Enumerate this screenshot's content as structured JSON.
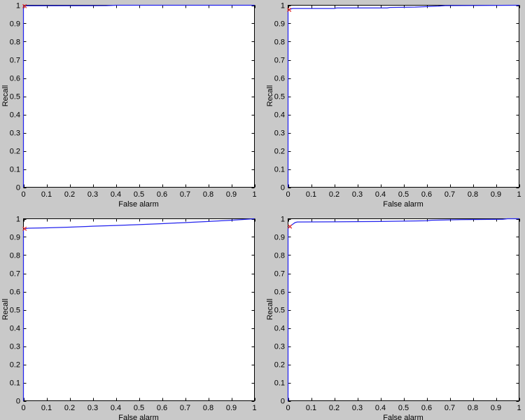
{
  "figure": {
    "background_color": "#c9c9c9",
    "plot_background_color": "#ffffff",
    "axis_line_color": "#000000",
    "text_color": "#000000",
    "curve_color": "#2222ee",
    "marker_color": "#e03030",
    "xlabel": "False alarm",
    "ylabel": "Recall",
    "xtick_labels": [
      "0",
      "0.1",
      "0.2",
      "0.3",
      "0.4",
      "0.5",
      "0.6",
      "0.7",
      "0.8",
      "0.9",
      "1"
    ],
    "ytick_labels": [
      "0",
      "0.1",
      "0.2",
      "0.3",
      "0.4",
      "0.5",
      "0.6",
      "0.7",
      "0.8",
      "0.9",
      "1"
    ]
  },
  "chart_data": [
    {
      "type": "line",
      "position": "top-left",
      "title": "",
      "xlabel": "False alarm",
      "ylabel": "Recall",
      "xlim": [
        0,
        1
      ],
      "ylim": [
        0,
        1
      ],
      "grid": false,
      "legend": null,
      "series": [
        {
          "name": "roc-curve",
          "style": "solid",
          "color": "#2222ee",
          "x": [
            0,
            0,
            0.005,
            0.01,
            0.36,
            0.4,
            1
          ],
          "y": [
            0,
            0.993,
            0.995,
            0.997,
            0.998,
            1,
            1
          ]
        },
        {
          "name": "operating-point",
          "style": "marker-x",
          "color": "#e03030",
          "x": [
            0.005
          ],
          "y": [
            0.995
          ]
        }
      ]
    },
    {
      "type": "line",
      "position": "top-right",
      "title": "",
      "xlabel": "False alarm",
      "ylabel": "Recall",
      "xlim": [
        0,
        1
      ],
      "ylim": [
        0,
        1
      ],
      "grid": false,
      "legend": null,
      "series": [
        {
          "name": "roc-curve",
          "style": "solid",
          "color": "#2222ee",
          "x": [
            0,
            0,
            0.005,
            0.01,
            0.02,
            0.2,
            0.21,
            0.43,
            0.44,
            0.55,
            0.65,
            0.68,
            1
          ],
          "y": [
            0,
            0.97,
            0.975,
            0.979,
            0.982,
            0.982,
            0.985,
            0.985,
            0.988,
            0.99,
            0.995,
            0.998,
            1
          ]
        },
        {
          "name": "operating-point",
          "style": "marker-x",
          "color": "#e03030",
          "x": [
            0.005
          ],
          "y": [
            0.975
          ]
        }
      ]
    },
    {
      "type": "line",
      "position": "bottom-left",
      "title": "",
      "xlabel": "False alarm",
      "ylabel": "Recall",
      "xlim": [
        0,
        1
      ],
      "ylim": [
        0,
        1
      ],
      "grid": false,
      "legend": null,
      "series": [
        {
          "name": "roc-curve",
          "style": "solid",
          "color": "#2222ee",
          "x": [
            0,
            0,
            0.005,
            0.02,
            0.1,
            0.2,
            0.3,
            0.4,
            0.5,
            0.6,
            0.7,
            0.8,
            0.9,
            0.93,
            1
          ],
          "y": [
            0,
            0.94,
            0.945,
            0.948,
            0.95,
            0.954,
            0.959,
            0.963,
            0.968,
            0.973,
            0.979,
            0.985,
            0.992,
            0.994,
            1
          ]
        },
        {
          "name": "operating-point",
          "style": "marker-x",
          "color": "#e03030",
          "x": [
            0.005
          ],
          "y": [
            0.945
          ]
        }
      ]
    },
    {
      "type": "line",
      "position": "bottom-right",
      "title": "",
      "xlabel": "False alarm",
      "ylabel": "Recall",
      "xlim": [
        0,
        1
      ],
      "ylim": [
        0,
        1
      ],
      "grid": false,
      "legend": null,
      "series": [
        {
          "name": "roc-curve",
          "style": "solid",
          "color": "#2222ee",
          "x": [
            0,
            0,
            0.005,
            0.008,
            0.012,
            0.018,
            0.025,
            0.03,
            0.04,
            0.2,
            0.4,
            0.5,
            0.6,
            0.62,
            0.75,
            0.93,
            0.95,
            1
          ],
          "y": [
            0,
            0.95,
            0.953,
            0.957,
            0.962,
            0.968,
            0.974,
            0.979,
            0.982,
            0.983,
            0.985,
            0.987,
            0.989,
            0.992,
            0.995,
            0.997,
            1,
            1
          ]
        },
        {
          "name": "operating-point",
          "style": "marker-x",
          "color": "#e03030",
          "x": [
            0.008
          ],
          "y": [
            0.957
          ]
        }
      ]
    }
  ]
}
